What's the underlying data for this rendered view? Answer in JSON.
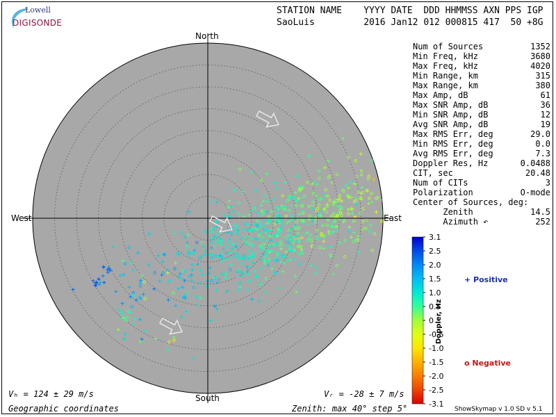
{
  "logo": {
    "line1": "Lowell",
    "line2": "DIGISONDE"
  },
  "header": {
    "labels": "STATION NAME    YYYY DATE  DDD HHMMSS AXN PPS IGP",
    "values": "SaoLuis         2016 Jan12 012 000815 417  50 +8G"
  },
  "stats": [
    {
      "label": "Num of Sources",
      "value": "1352"
    },
    {
      "label": "Min Freq, kHz",
      "value": "3680"
    },
    {
      "label": "Max Freq, kHz",
      "value": "4020"
    },
    {
      "label": "Min Range, km",
      "value": "315"
    },
    {
      "label": "Max Range, km",
      "value": "380"
    },
    {
      "label": "Max Amp, dB",
      "value": "61"
    },
    {
      "label": "Max SNR Amp, dB",
      "value": "36"
    },
    {
      "label": "Min SNR Amp, dB",
      "value": "12"
    },
    {
      "label": "Avg SNR Amp, dB",
      "value": "19"
    },
    {
      "label": "Max RMS Err, deg",
      "value": "29.0"
    },
    {
      "label": "Min RMS Err, deg",
      "value": "0.0"
    },
    {
      "label": "Avg RMS Err, deg",
      "value": "7.3"
    },
    {
      "label": "Doppler Res, Hz",
      "value": "0.0488"
    },
    {
      "label": "CIT, sec",
      "value": "20.48"
    },
    {
      "label": "Num of CITs",
      "value": "3"
    },
    {
      "label": "Polarization",
      "value": "O-mode"
    },
    {
      "label": "Center of Sources, deg:",
      "value": ""
    },
    {
      "label": "      Zenith",
      "value": "14.5"
    },
    {
      "label": "      Azimuth ↶",
      "value": "252"
    }
  ],
  "compass": {
    "north": "North",
    "south": "South",
    "east": "East",
    "west": "West"
  },
  "colors": {
    "plot_bg": "#a8a8a8",
    "positive": "#1a2fb0",
    "negative": "#c01818"
  },
  "footer": {
    "vh": "Vₕ = 124 ± 29 m/s",
    "vz": "Vᵣ = -28 ± 7 m/s",
    "coords": "Geographic coordinates",
    "zenith": "Zenith: max 40°  step 5°",
    "version": "ShowSkymap v 1.0   SD v 5.1"
  },
  "legend": {
    "positive": "+ Positive",
    "negative": "o Negative",
    "colorbar_title": "Doppler, Hz"
  },
  "chart_data": {
    "type": "scatter",
    "coordinate_system": "polar skymap (azimuth, zenith)",
    "zenith_max_deg": 40,
    "zenith_step_deg": 5,
    "colorbar": {
      "label": "Doppler, Hz",
      "range": [
        -3.1,
        3.1
      ],
      "ticks": [
        "3.1",
        "2.5",
        "2.0",
        "1.5",
        "1.0",
        "0.5",
        "0",
        "-0.5",
        "-1.0",
        "-1.5",
        "-2.0",
        "-2.5",
        "-3.1"
      ]
    },
    "series": [
      {
        "name": "Positive",
        "marker": "+",
        "cluster": {
          "azimuth_deg": 112,
          "zenith_deg": 14,
          "doppler_hz": 1.0
        }
      },
      {
        "name": "Negative",
        "marker": "o",
        "cluster": {
          "azimuth_deg": 95,
          "zenith_deg": 19,
          "doppler_hz": -0.8
        }
      }
    ],
    "outliers": [
      {
        "azimuth_deg": 240,
        "zenith_deg": 29,
        "doppler_hz": 2.4
      },
      {
        "azimuth_deg": 243,
        "zenith_deg": 26,
        "doppler_hz": 2.2
      },
      {
        "azimuth_deg": 220,
        "zenith_deg": 30,
        "doppler_hz": 0.5
      }
    ],
    "center_of_sources": {
      "zenith_deg": 14.5,
      "azimuth_deg": 252
    }
  }
}
